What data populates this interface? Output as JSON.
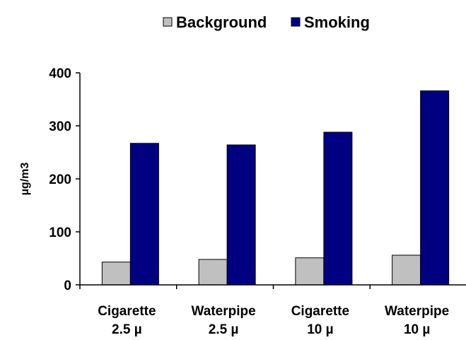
{
  "chart_data": {
    "type": "bar",
    "title": "",
    "xlabel": "",
    "ylabel": "µg/m3",
    "ylim": [
      0,
      400
    ],
    "yticks": [
      0,
      100,
      200,
      300,
      400
    ],
    "grid": false,
    "legend_position": "top",
    "categories": [
      [
        "Cigarette",
        "2.5 µ"
      ],
      [
        "Waterpipe",
        "2.5 µ"
      ],
      [
        "Cigarette",
        "10 µ"
      ],
      [
        "Waterpipe",
        "10 µ"
      ]
    ],
    "series": [
      {
        "name": "Background",
        "color": "#c0c0c0",
        "values": [
          43,
          48,
          51,
          56
        ]
      },
      {
        "name": "Smoking",
        "color": "#000080",
        "values": [
          267,
          264,
          288,
          366
        ]
      }
    ]
  }
}
